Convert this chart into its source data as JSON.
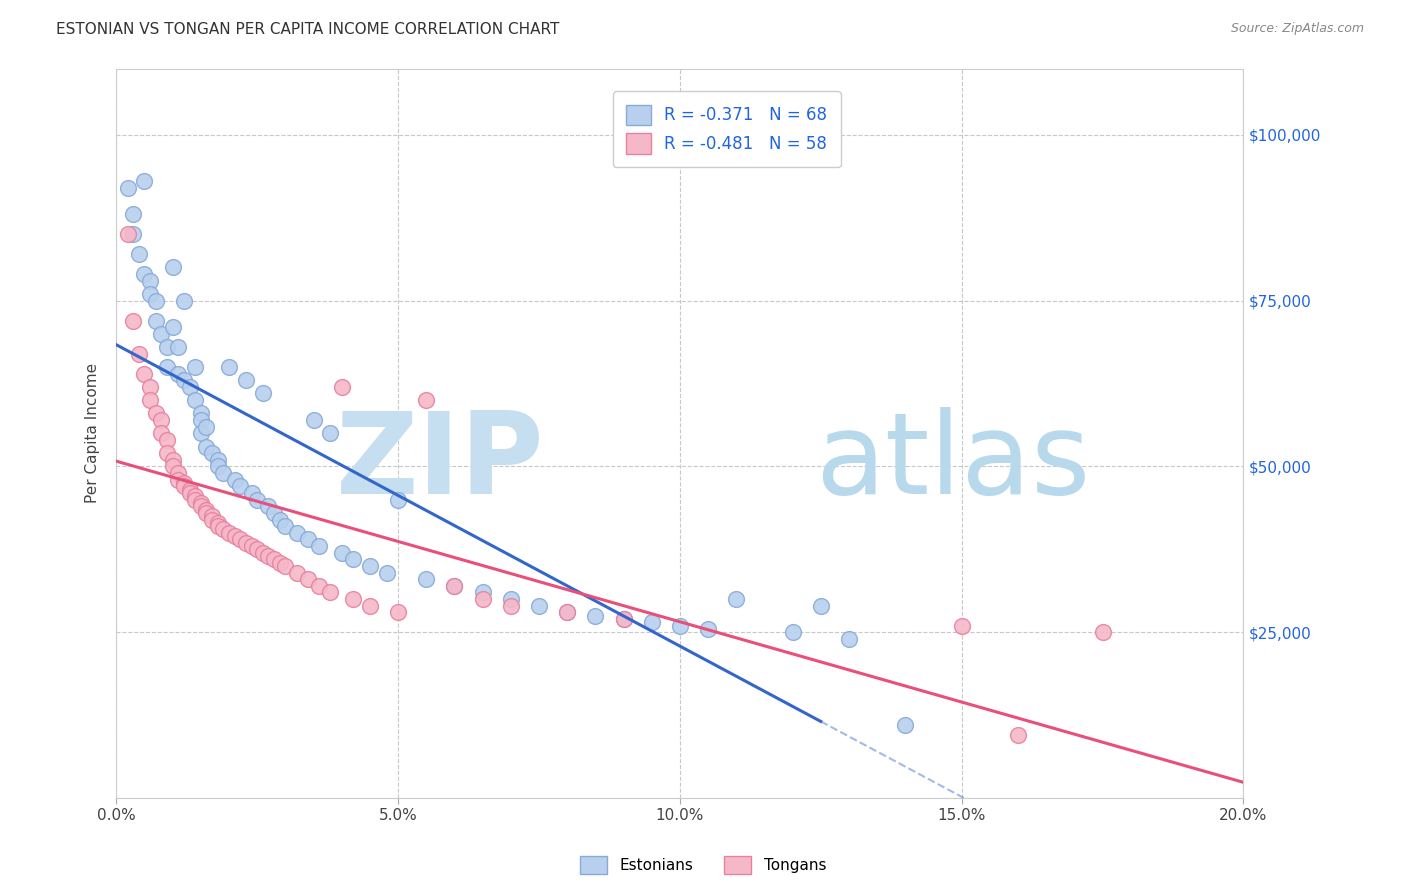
{
  "title": "ESTONIAN VS TONGAN PER CAPITA INCOME CORRELATION CHART",
  "source": "Source: ZipAtlas.com",
  "ylabel": "Per Capita Income",
  "xlim": [
    0.0,
    0.2
  ],
  "ylim": [
    0,
    110000
  ],
  "yticks": [
    0,
    25000,
    50000,
    75000,
    100000
  ],
  "ytick_labels": [
    "",
    "$25,000",
    "$50,000",
    "$75,000",
    "$100,000"
  ],
  "xticks": [
    0.0,
    0.05,
    0.1,
    0.15,
    0.2
  ],
  "xtick_labels": [
    "0.0%",
    "5.0%",
    "10.0%",
    "15.0%",
    "20.0%"
  ],
  "background_color": "#ffffff",
  "grid_color": "#c8c8c8",
  "watermark_zip": "ZIP",
  "watermark_atlas": "atlas",
  "watermark_color_zip": "#c5dff0",
  "watermark_color_atlas": "#b8d8ec",
  "series": [
    {
      "name": "Estonians",
      "color": "#b8d0ee",
      "edge_color": "#88aad8",
      "r": -0.371,
      "n": 68,
      "line_color": "#3366cc",
      "line_solid_end": 0.125,
      "points_x": [
        0.002,
        0.003,
        0.003,
        0.004,
        0.005,
        0.005,
        0.006,
        0.006,
        0.007,
        0.007,
        0.008,
        0.009,
        0.009,
        0.01,
        0.01,
        0.011,
        0.011,
        0.012,
        0.012,
        0.013,
        0.014,
        0.014,
        0.015,
        0.015,
        0.015,
        0.016,
        0.016,
        0.017,
        0.018,
        0.018,
        0.019,
        0.02,
        0.021,
        0.022,
        0.023,
        0.024,
        0.025,
        0.026,
        0.027,
        0.028,
        0.029,
        0.03,
        0.032,
        0.034,
        0.035,
        0.036,
        0.038,
        0.04,
        0.042,
        0.045,
        0.048,
        0.05,
        0.055,
        0.06,
        0.065,
        0.07,
        0.075,
        0.08,
        0.085,
        0.09,
        0.095,
        0.1,
        0.105,
        0.11,
        0.12,
        0.125,
        0.13,
        0.14
      ],
      "points_y": [
        92000,
        88000,
        85000,
        82000,
        93000,
        79000,
        78000,
        76000,
        75000,
        72000,
        70000,
        68000,
        65000,
        80000,
        71000,
        68000,
        64000,
        75000,
        63000,
        62000,
        65000,
        60000,
        58000,
        57000,
        55000,
        56000,
        53000,
        52000,
        51000,
        50000,
        49000,
        65000,
        48000,
        47000,
        63000,
        46000,
        45000,
        61000,
        44000,
        43000,
        42000,
        41000,
        40000,
        39000,
        57000,
        38000,
        55000,
        37000,
        36000,
        35000,
        34000,
        45000,
        33000,
        32000,
        31000,
        30000,
        29000,
        28000,
        27500,
        27000,
        26500,
        26000,
        25500,
        30000,
        25000,
        29000,
        24000,
        11000
      ]
    },
    {
      "name": "Tongans",
      "color": "#f5b8c8",
      "edge_color": "#e880a0",
      "r": -0.481,
      "n": 58,
      "line_color": "#e8507a",
      "line_solid_end": 0.2,
      "points_x": [
        0.002,
        0.003,
        0.004,
        0.005,
        0.006,
        0.006,
        0.007,
        0.008,
        0.008,
        0.009,
        0.009,
        0.01,
        0.01,
        0.011,
        0.011,
        0.012,
        0.012,
        0.013,
        0.013,
        0.014,
        0.014,
        0.015,
        0.015,
        0.016,
        0.016,
        0.017,
        0.017,
        0.018,
        0.018,
        0.019,
        0.02,
        0.021,
        0.022,
        0.023,
        0.024,
        0.025,
        0.026,
        0.027,
        0.028,
        0.029,
        0.03,
        0.032,
        0.034,
        0.036,
        0.038,
        0.04,
        0.042,
        0.045,
        0.05,
        0.055,
        0.06,
        0.065,
        0.07,
        0.08,
        0.09,
        0.15,
        0.16,
        0.175
      ],
      "points_y": [
        85000,
        72000,
        67000,
        64000,
        62000,
        60000,
        58000,
        57000,
        55000,
        54000,
        52000,
        51000,
        50000,
        49000,
        48000,
        47500,
        47000,
        46500,
        46000,
        45500,
        45000,
        44500,
        44000,
        43500,
        43000,
        42500,
        42000,
        41500,
        41000,
        40500,
        40000,
        39500,
        39000,
        38500,
        38000,
        37500,
        37000,
        36500,
        36000,
        35500,
        35000,
        34000,
        33000,
        32000,
        31000,
        62000,
        30000,
        29000,
        28000,
        60000,
        32000,
        30000,
        29000,
        28000,
        27000,
        26000,
        9500,
        25000
      ]
    }
  ]
}
